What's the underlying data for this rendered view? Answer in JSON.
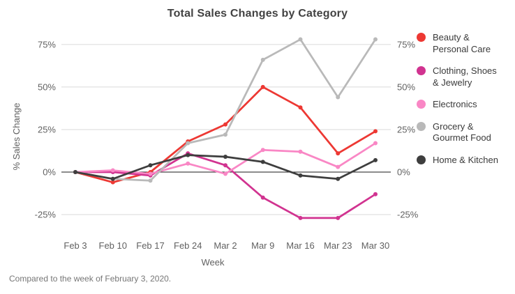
{
  "title": "Total Sales Changes by Category",
  "caption": "Compared to the week of February 3, 2020.",
  "chart_data": {
    "type": "line",
    "x": [
      "Feb 3",
      "Feb 10",
      "Feb 17",
      "Feb 24",
      "Mar 2",
      "Mar 9",
      "Mar 16",
      "Mar 23",
      "Mar 30"
    ],
    "xlabel": "Week",
    "ylabel": "% Sales Change",
    "ytick_values": [
      75,
      50,
      25,
      0,
      -25
    ],
    "ytick_suffix": "%",
    "ylim": [
      -32,
      82
    ],
    "grid": true,
    "zero_line": true,
    "legend_position": "right",
    "dual_y_tick_labels": true,
    "colors": {
      "gridline": "#dadada",
      "zero_line": "#1a1a1a",
      "title_text": "#424242",
      "tick_text": "#616161",
      "caption_text": "#767676"
    },
    "series": [
      {
        "name": "Beauty & Personal Care",
        "label_lines": [
          "Beauty &",
          "Personal Care"
        ],
        "color": "#ed3833",
        "values": [
          0,
          -6,
          0,
          18,
          28,
          50,
          38,
          11,
          24
        ]
      },
      {
        "name": "Clothing, Shoes & Jewelry",
        "label_lines": [
          "Clothing, Shoes",
          "& Jewelry"
        ],
        "color": "#d13390",
        "values": [
          0,
          0,
          -2,
          11,
          4,
          -15,
          -27,
          -27,
          -13
        ]
      },
      {
        "name": "Electronics",
        "label_lines": [
          "Electronics"
        ],
        "color": "#f987c5",
        "values": [
          0,
          1,
          -1,
          5,
          -1,
          13,
          12,
          3,
          17
        ]
      },
      {
        "name": "Grocery & Gourmet Food",
        "label_lines": [
          "Grocery &",
          "Gourmet Food"
        ],
        "color": "#b9b9b9",
        "values": [
          0,
          -4,
          -5,
          17,
          22,
          66,
          78,
          44,
          78
        ]
      },
      {
        "name": "Home & Kitchen",
        "label_lines": [
          "Home & Kitchen"
        ],
        "color": "#3e3e3e",
        "values": [
          0,
          -4,
          4,
          10,
          9,
          6,
          -2,
          -4,
          7
        ]
      }
    ]
  }
}
